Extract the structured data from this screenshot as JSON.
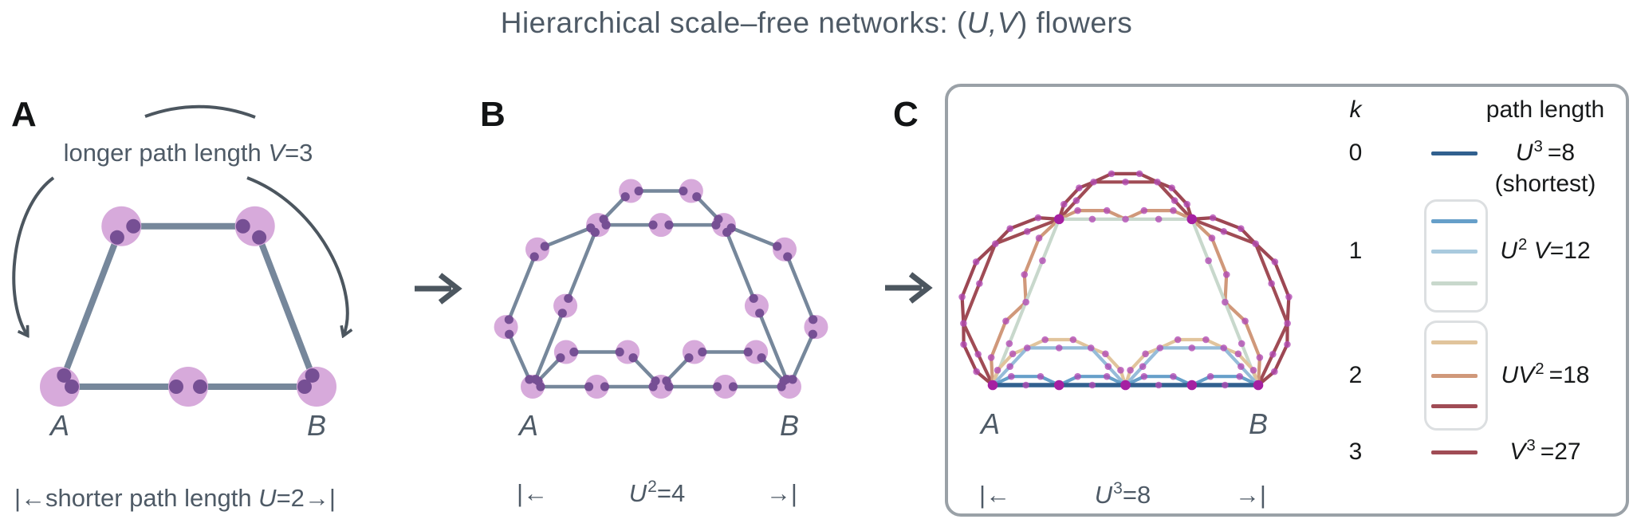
{
  "title": {
    "pre": "Hierarchical scale–free networks: (",
    "italic": "U,V",
    "post": ") flowers"
  },
  "panels": {
    "a": {
      "letter": "A",
      "annotation_tokens": [
        [
          "n",
          "longer path length "
        ],
        [
          "i",
          "V"
        ],
        [
          "n",
          "=3"
        ]
      ],
      "label_a": "A",
      "label_b": "B",
      "caption_tokens": [
        [
          "n",
          "|←shorter path length "
        ],
        [
          "i",
          "U"
        ],
        [
          "n",
          "=2→|"
        ]
      ]
    },
    "b": {
      "letter": "B",
      "label_a": "A",
      "label_b": "B",
      "caption": {
        "left": "|←",
        "tokens": [
          [
            "i",
            "U"
          ],
          [
            "sup",
            "2"
          ],
          [
            "n",
            "=4"
          ]
        ],
        "right": "→|"
      }
    },
    "c": {
      "letter": "C",
      "label_a": "A",
      "label_b": "B",
      "caption": {
        "left": "|←",
        "tokens": [
          [
            "i",
            "U"
          ],
          [
            "sup",
            "3"
          ],
          [
            "n",
            "=8"
          ]
        ],
        "right": "→|"
      }
    }
  },
  "legend": {
    "header_k": "k",
    "header_path": "path length",
    "rows": [
      {
        "k": "0",
        "boxed": false,
        "swatches": [
          "#31608f"
        ],
        "label_tokens": [
          [
            "i",
            "U"
          ],
          [
            "sup",
            "3"
          ],
          [
            "n",
            " =8"
          ]
        ],
        "note": "(shortest)"
      },
      {
        "k": "1",
        "boxed": true,
        "swatches": [
          "#669fc9",
          "#a9cade",
          "#c8d8cc"
        ],
        "label_tokens": [
          [
            "i",
            "U"
          ],
          [
            "sup",
            "2"
          ],
          [
            "n",
            " "
          ],
          [
            "i",
            "V"
          ],
          [
            "n",
            "=12"
          ]
        ]
      },
      {
        "k": "2",
        "boxed": true,
        "swatches": [
          "#e1c49c",
          "#d0987a",
          "#a04c55"
        ],
        "label_tokens": [
          [
            "i",
            "U"
          ],
          [
            "i",
            "V"
          ],
          [
            "sup",
            "2"
          ],
          [
            "n",
            " =18"
          ]
        ]
      },
      {
        "k": "3",
        "boxed": false,
        "swatches": [
          "#a04c55"
        ],
        "label_tokens": [
          [
            "i",
            "V"
          ],
          [
            "sup",
            "3"
          ],
          [
            "n",
            " =27"
          ]
        ]
      }
    ]
  },
  "network": {
    "U": 2,
    "V": 3,
    "generations": {
      "panel_a": 1,
      "panel_b": 2,
      "panel_c": 3
    },
    "colors": {
      "node_fill": "#d7aadb",
      "subnode": "#764f94",
      "edge": "#76879b",
      "path_dot": "#b14ab4",
      "anchor_dot": "#a520a2",
      "arrow": "#4c565f",
      "frame_border": "#9aa1a7",
      "legend_box_border": "#dcdfe1",
      "text_gray": "#4e5a66",
      "text_black": "#17191a"
    },
    "paths": [
      {
        "k": 0,
        "choices": "UUU",
        "length": 8,
        "color": "#31608f"
      },
      {
        "k": 1,
        "choices": "UUV",
        "length": 12,
        "color": "#669fc9"
      },
      {
        "k": 1,
        "choices": "UVU",
        "length": 12,
        "color": "#96bcd9"
      },
      {
        "k": 1,
        "choices": "VUU",
        "length": 12,
        "color": "#c8d8cc"
      },
      {
        "k": 2,
        "choices": "UVV",
        "length": 18,
        "color": "#e1c49c"
      },
      {
        "k": 2,
        "choices": "VUV",
        "length": 18,
        "color": "#d0987a"
      },
      {
        "k": 2,
        "choices": "VVU",
        "length": 18,
        "color": "#a04c55"
      },
      {
        "k": 3,
        "choices": "VVV",
        "length": 27,
        "color": "#9d4753"
      }
    ]
  }
}
